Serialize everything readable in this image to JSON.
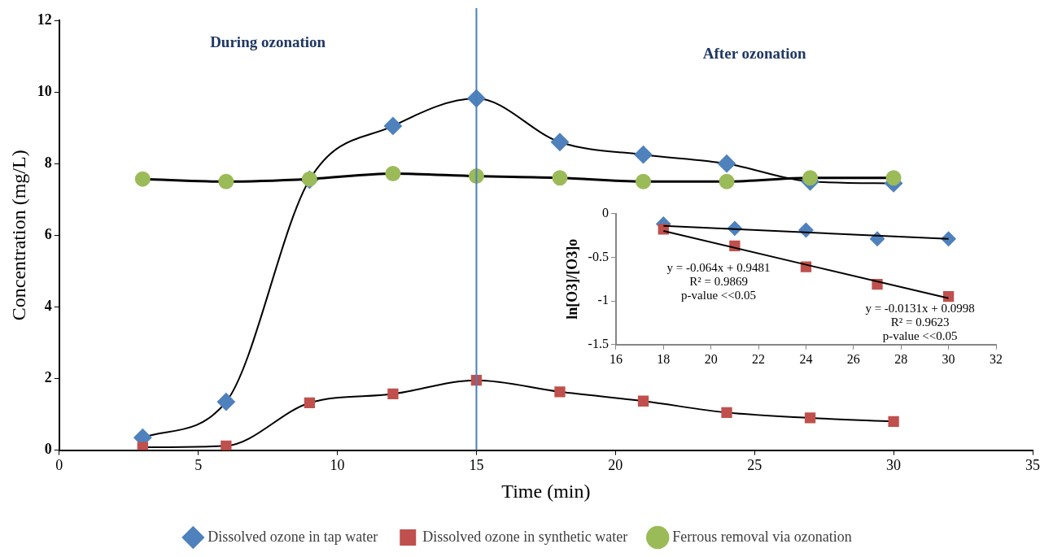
{
  "chart_data": [
    {
      "type": "line",
      "xlabel": "Time (min)",
      "ylabel": "Concentration (mg/L)",
      "x": [
        3,
        6,
        9,
        12,
        15,
        18,
        21,
        24,
        27,
        30
      ],
      "series": [
        {
          "name": "Dissolved ozone in tap water",
          "color": "#4f81bd",
          "marker": "diamond",
          "values": [
            0.35,
            1.35,
            7.55,
            9.05,
            9.82,
            8.6,
            8.25,
            8.0,
            7.5,
            7.45
          ]
        },
        {
          "name": "Dissolved ozone in synthetic water",
          "color": "#c0504d",
          "marker": "square",
          "values": [
            0.08,
            0.12,
            1.32,
            1.57,
            1.95,
            1.63,
            1.37,
            1.05,
            0.9,
            0.8
          ]
        },
        {
          "name": "Ferrous removal via ozonation",
          "color": "#9bbb59",
          "marker": "circle",
          "values": [
            7.57,
            7.5,
            7.57,
            7.72,
            7.65,
            7.6,
            7.5,
            7.5,
            7.6,
            7.6
          ]
        }
      ],
      "xlim": [
        0,
        35
      ],
      "xticks": [
        0,
        5,
        10,
        15,
        20,
        25,
        30,
        35
      ],
      "ylim": [
        0,
        12
      ],
      "yticks": [
        0,
        2,
        4,
        6,
        8,
        10,
        12
      ],
      "ref_lines": [
        {
          "axis": "x",
          "value": 15,
          "color": "#4a7ebb"
        }
      ],
      "annotations": [
        "During ozonation",
        "After ozonation"
      ],
      "grid": false,
      "legend": "bottom"
    },
    {
      "type": "scatter",
      "ylabel": "ln[O3]/[O3]o",
      "series": [
        {
          "color": "#4f81bd",
          "marker": "diamond",
          "x": [
            18,
            21,
            24,
            27,
            30
          ],
          "values": [
            -0.12,
            -0.17,
            -0.19,
            -0.29,
            -0.29
          ]
        },
        {
          "color": "#c0504d",
          "marker": "square",
          "x": [
            18,
            21,
            24,
            27,
            30
          ],
          "values": [
            -0.18,
            -0.37,
            -0.61,
            -0.81,
            -0.95
          ]
        },
        {
          "type": "line",
          "color": "#000000",
          "marker": "none",
          "x": [
            18,
            30
          ],
          "values": [
            -0.14,
            -0.29
          ]
        },
        {
          "type": "line",
          "color": "#000000",
          "marker": "none",
          "x": [
            18,
            30
          ],
          "values": [
            -0.2,
            -0.97
          ]
        }
      ],
      "xlim": [
        16,
        32
      ],
      "xticks": [
        16,
        18,
        20,
        22,
        24,
        26,
        28,
        30,
        32
      ],
      "ylim": [
        -1.5,
        0
      ],
      "yticks": [
        -1.5,
        -1,
        -0.5,
        0
      ],
      "annotations": [
        "y = -0.064x + 0.9481\nR² = 0.9869\np-value <<0.05",
        "y = -0.0131x + 0.0998\nR² = 0.9623\np-value <<0.05"
      ],
      "grid": false,
      "legend": false
    }
  ]
}
